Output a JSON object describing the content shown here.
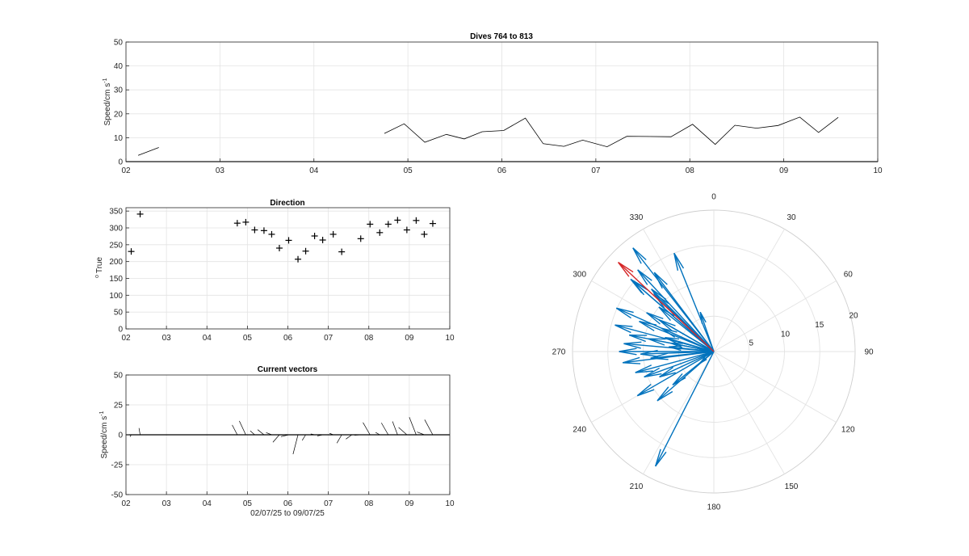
{
  "chart_data": [
    {
      "id": "speed",
      "type": "line",
      "title": "Dives 764 to 813",
      "ylabel": "Speed/cm s",
      "ylabel_sup": "-1",
      "xlim": [
        2,
        10
      ],
      "ylim": [
        0,
        50
      ],
      "xticks": [
        2,
        3,
        4,
        5,
        6,
        7,
        8,
        9,
        10
      ],
      "xticklabels": [
        "02",
        "03",
        "04",
        "05",
        "06",
        "07",
        "08",
        "09",
        "10"
      ],
      "yticks": [
        0,
        10,
        20,
        30,
        40,
        50
      ],
      "yticklabels": [
        "0",
        "10",
        "20",
        "30",
        "40",
        "50"
      ],
      "grid": true,
      "segments": [
        [
          [
            2.13,
            2.6
          ],
          [
            2.35,
            5.9
          ]
        ],
        [
          [
            4.75,
            11.8
          ],
          [
            4.96,
            15.8
          ],
          [
            5.18,
            8.1
          ],
          [
            5.41,
            11.4
          ],
          [
            5.6,
            9.5
          ],
          [
            5.79,
            12.5
          ],
          [
            6.02,
            13.0
          ],
          [
            6.25,
            18.2
          ],
          [
            6.44,
            7.5
          ],
          [
            6.66,
            6.4
          ],
          [
            6.86,
            9.0
          ],
          [
            7.12,
            6.2
          ],
          [
            7.33,
            10.6
          ],
          [
            7.58,
            10.5
          ],
          [
            7.8,
            10.4
          ],
          [
            8.03,
            15.6
          ],
          [
            8.27,
            7.2
          ],
          [
            8.48,
            15.2
          ],
          [
            8.71,
            14.0
          ],
          [
            8.94,
            15.1
          ],
          [
            9.17,
            18.6
          ],
          [
            9.37,
            12.2
          ],
          [
            9.58,
            18.5
          ]
        ]
      ]
    },
    {
      "id": "direction",
      "type": "scatter",
      "title": "Direction",
      "ylabel": "True",
      "ylabel_prefix": "o",
      "xlim": [
        2,
        10
      ],
      "ylim": [
        0,
        360
      ],
      "xticks": [
        2,
        3,
        4,
        5,
        6,
        7,
        8,
        9,
        10
      ],
      "xticklabels": [
        "02",
        "03",
        "04",
        "05",
        "06",
        "07",
        "08",
        "09",
        "10"
      ],
      "yticks": [
        0,
        50,
        100,
        150,
        200,
        250,
        300,
        350
      ],
      "yticklabels": [
        "0",
        "50",
        "100",
        "150",
        "200",
        "250",
        "300",
        "350"
      ],
      "grid": true,
      "marker": "+",
      "points": [
        [
          2.13,
          230
        ],
        [
          2.35,
          341
        ],
        [
          4.75,
          314
        ],
        [
          4.96,
          317
        ],
        [
          5.18,
          294
        ],
        [
          5.41,
          292
        ],
        [
          5.6,
          281
        ],
        [
          5.79,
          240
        ],
        [
          6.02,
          263
        ],
        [
          6.25,
          207
        ],
        [
          6.44,
          231
        ],
        [
          6.66,
          276
        ],
        [
          6.86,
          264
        ],
        [
          7.12,
          281
        ],
        [
          7.33,
          229
        ],
        [
          7.8,
          268
        ],
        [
          8.03,
          311
        ],
        [
          8.27,
          286
        ],
        [
          8.48,
          311
        ],
        [
          8.71,
          323
        ],
        [
          8.94,
          294
        ],
        [
          9.17,
          322
        ],
        [
          9.37,
          281
        ],
        [
          9.58,
          313
        ]
      ]
    },
    {
      "id": "vectors",
      "type": "line",
      "title": "Current vectors",
      "ylabel": "Speed/cm s",
      "ylabel_sup": "-1",
      "xlabel": "02/07/25 to 09/07/25",
      "xlim": [
        2,
        10
      ],
      "ylim": [
        -50,
        50
      ],
      "xticks": [
        2,
        3,
        4,
        5,
        6,
        7,
        8,
        9,
        10
      ],
      "xticklabels": [
        "02",
        "03",
        "04",
        "05",
        "06",
        "07",
        "08",
        "09",
        "10"
      ],
      "yticks": [
        -50,
        -25,
        0,
        25,
        50
      ],
      "yticklabels": [
        "-50",
        "-25",
        "0",
        "25",
        "50"
      ],
      "grid": true,
      "time_units_per_speed_unit": 0.0148,
      "vectors": [
        [
          2.13,
          2.6,
          230
        ],
        [
          2.35,
          5.9,
          341
        ],
        [
          4.75,
          11.8,
          314
        ],
        [
          4.96,
          15.8,
          317
        ],
        [
          5.18,
          8.1,
          294
        ],
        [
          5.41,
          11.4,
          292
        ],
        [
          5.6,
          9.5,
          281
        ],
        [
          5.79,
          12.5,
          240
        ],
        [
          6.02,
          13.0,
          263
        ],
        [
          6.25,
          18.2,
          207
        ],
        [
          6.44,
          7.5,
          231
        ],
        [
          6.66,
          6.4,
          276
        ],
        [
          6.86,
          9.0,
          264
        ],
        [
          7.12,
          6.2,
          281
        ],
        [
          7.33,
          10.6,
          229
        ],
        [
          7.58,
          10.5,
          250
        ],
        [
          7.8,
          10.4,
          268
        ],
        [
          8.03,
          15.6,
          311
        ],
        [
          8.27,
          7.2,
          286
        ],
        [
          8.48,
          15.2,
          311
        ],
        [
          8.71,
          14.0,
          323
        ],
        [
          8.94,
          15.1,
          294
        ],
        [
          9.17,
          18.6,
          322
        ],
        [
          9.37,
          12.2,
          281
        ],
        [
          9.58,
          18.5,
          313
        ]
      ]
    },
    {
      "id": "compass",
      "type": "polar",
      "rmax": 20,
      "rings": [
        5,
        10,
        15,
        20
      ],
      "ring_labels": [
        "5",
        "10",
        "15",
        "20"
      ],
      "angles": [
        0,
        30,
        60,
        90,
        120,
        150,
        180,
        210,
        240,
        270,
        300,
        330
      ],
      "angle_labels": [
        "0",
        "30",
        "60",
        "90",
        "120",
        "150",
        "180",
        "210",
        "240",
        "270",
        "300",
        "330"
      ],
      "arrow_color": "#0072BD",
      "highlight_color": "#D62728",
      "arrows": [
        [
          230,
          2.6
        ],
        [
          341,
          5.9
        ],
        [
          314,
          11.8
        ],
        [
          317,
          15.8
        ],
        [
          294,
          8.1
        ],
        [
          292,
          11.4
        ],
        [
          281,
          9.5
        ],
        [
          240,
          12.5
        ],
        [
          263,
          13.0
        ],
        [
          207,
          18.2
        ],
        [
          231,
          7.5
        ],
        [
          276,
          6.4
        ],
        [
          264,
          9.0
        ],
        [
          281,
          6.2
        ],
        [
          229,
          10.6
        ],
        [
          250,
          10.5
        ],
        [
          268,
          10.4
        ],
        [
          311,
          15.6
        ],
        [
          286,
          7.2
        ],
        [
          311,
          15.2
        ],
        [
          323,
          14.0
        ],
        [
          294,
          15.1
        ],
        [
          322,
          18.6
        ],
        [
          281,
          12.2
        ],
        [
          309,
          10.0
        ],
        [
          300,
          11.0
        ],
        [
          275,
          12.8
        ],
        [
          255,
          11.5
        ],
        [
          338,
          15.0
        ],
        [
          285,
          14.5
        ],
        [
          270,
          13.4
        ],
        [
          245,
          8.5
        ],
        [
          300,
          9.0
        ],
        [
          315,
          12.5
        ]
      ],
      "highlight": [
        [
          313,
          18.5
        ]
      ]
    }
  ]
}
